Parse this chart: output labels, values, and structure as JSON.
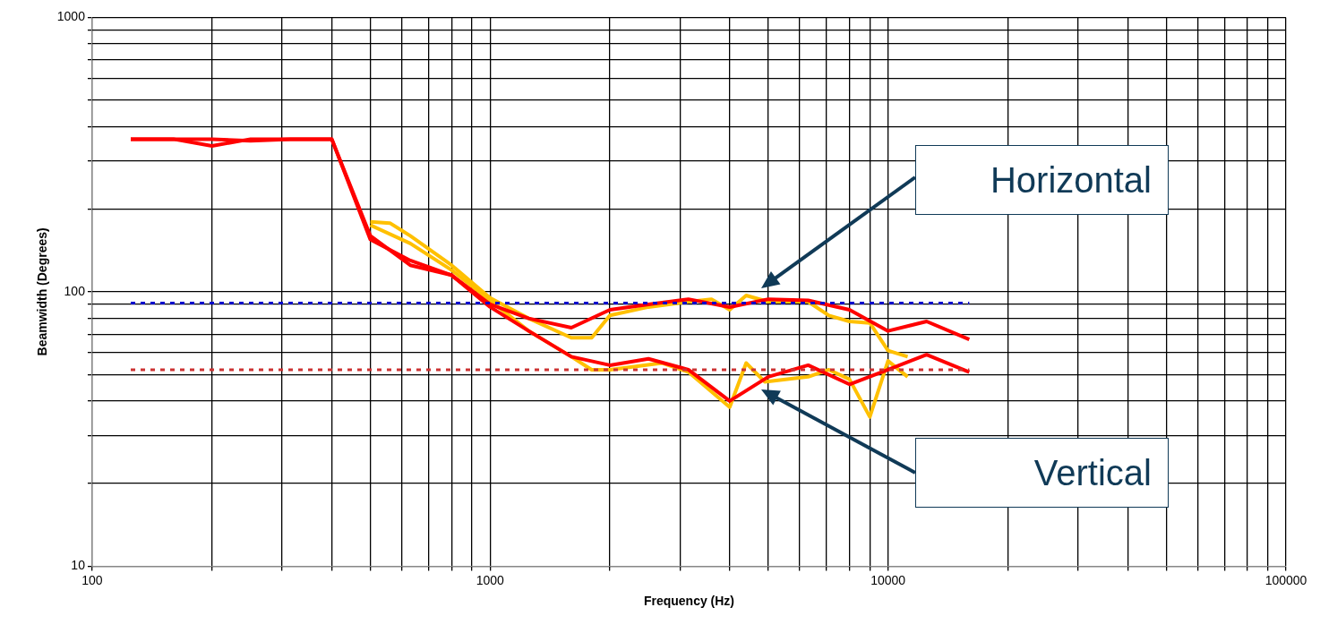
{
  "chart_data": {
    "type": "line",
    "xlabel": "Frequency (Hz)",
    "ylabel": "Beamwidth (Degrees)",
    "log": "xy",
    "grid": true,
    "legend": false,
    "marker": "none",
    "xlim": [
      100,
      100000
    ],
    "xticks": [
      100,
      {
        "value": 200,
        "label": null
      },
      {
        "value": 300,
        "label": null
      },
      {
        "value": 400,
        "label": null
      },
      {
        "value": 500,
        "label": null
      },
      {
        "value": 600,
        "label": null
      },
      {
        "value": 700,
        "label": null
      },
      {
        "value": 800,
        "label": null
      },
      {
        "value": 900,
        "label": null
      },
      1000,
      {
        "value": 2000,
        "label": null
      },
      {
        "value": 3000,
        "label": null
      },
      {
        "value": 4000,
        "label": null
      },
      {
        "value": 5000,
        "label": null
      },
      {
        "value": 6000,
        "label": null
      },
      {
        "value": 7000,
        "label": null
      },
      {
        "value": 8000,
        "label": null
      },
      {
        "value": 9000,
        "label": null
      },
      10000,
      {
        "value": 20000,
        "label": null
      },
      {
        "value": 30000,
        "label": null
      },
      {
        "value": 40000,
        "label": null
      },
      {
        "value": 50000,
        "label": null
      },
      {
        "value": 60000,
        "label": null
      },
      {
        "value": 70000,
        "label": null
      },
      {
        "value": 80000,
        "label": null
      },
      {
        "value": 90000,
        "label": null
      },
      100000
    ],
    "ylim": [
      10,
      1000
    ],
    "yticks": [
      10,
      {
        "value": 20,
        "label": null
      },
      {
        "value": 30,
        "label": null
      },
      {
        "value": 40,
        "label": null
      },
      {
        "value": 50,
        "label": null
      },
      {
        "value": 60,
        "label": null
      },
      {
        "value": 70,
        "label": null
      },
      {
        "value": 80,
        "label": null
      },
      {
        "value": 90,
        "label": null
      },
      100,
      {
        "value": 200,
        "label": null
      },
      {
        "value": 300,
        "label": null
      },
      {
        "value": 400,
        "label": null
      },
      {
        "value": 500,
        "label": null
      },
      {
        "value": 600,
        "label": null
      },
      {
        "value": 700,
        "label": null
      },
      {
        "value": 800,
        "label": null
      },
      {
        "value": 900,
        "label": null
      },
      1000
    ],
    "series": [
      {
        "color": "#0000cc",
        "line_style": "dotted",
        "x": [
          125,
          16000
        ],
        "values": [
          91,
          91
        ]
      },
      {
        "color": "#cc3333",
        "line_style": "dotted",
        "x": [
          125,
          16000
        ],
        "values": [
          52,
          52
        ]
      },
      {
        "color": "#ff0000",
        "line_style": "solid",
        "x": [
          125,
          160,
          200,
          250,
          315,
          400,
          500,
          630,
          800,
          1000,
          1250,
          1600,
          2000,
          2500,
          3150,
          4000,
          5000,
          6300,
          8000,
          10000,
          12500,
          16000
        ],
        "values": [
          360,
          360,
          340,
          360,
          360,
          360,
          155,
          130,
          115,
          90,
          80,
          74,
          86,
          90,
          94,
          88,
          94,
          93,
          86,
          72,
          78,
          67
        ]
      },
      {
        "color": "#ff0000",
        "line_style": "solid",
        "x": [
          125,
          160,
          200,
          250,
          315,
          400,
          500,
          630,
          800,
          1000,
          1250,
          1600,
          2000,
          2500,
          3150,
          4000,
          5000,
          6300,
          8000,
          10000,
          12500,
          16000
        ],
        "values": [
          360,
          360,
          360,
          355,
          360,
          360,
          160,
          125,
          115,
          88,
          72,
          58,
          54,
          57,
          52,
          40,
          49,
          54,
          46,
          52,
          59,
          51
        ]
      },
      {
        "color": "#ffc000",
        "line_style": "solid",
        "x": [
          500,
          560,
          630,
          800,
          1000,
          1250,
          1600,
          1800,
          2000,
          2500,
          3150,
          3600,
          4000,
          4400,
          5000,
          6300,
          7100,
          8000,
          9000,
          10000,
          11200
        ],
        "values": [
          180,
          178,
          160,
          125,
          95,
          80,
          68,
          68,
          82,
          88,
          92,
          94,
          86,
          97,
          92,
          92,
          82,
          78,
          77,
          61,
          58
        ]
      },
      {
        "color": "#ffc000",
        "line_style": "solid",
        "x": [
          500,
          630,
          800,
          1000,
          1250,
          1600,
          1800,
          2000,
          2700,
          3150,
          4000,
          4400,
          4900,
          6300,
          7100,
          8000,
          9000,
          10000,
          11200
        ],
        "values": [
          175,
          150,
          120,
          93,
          72,
          58,
          52,
          52,
          55,
          51,
          38,
          55,
          47,
          49,
          52,
          48,
          35,
          56,
          49
        ]
      }
    ],
    "annotations": [
      "Horizontal",
      "Vertical"
    ]
  }
}
